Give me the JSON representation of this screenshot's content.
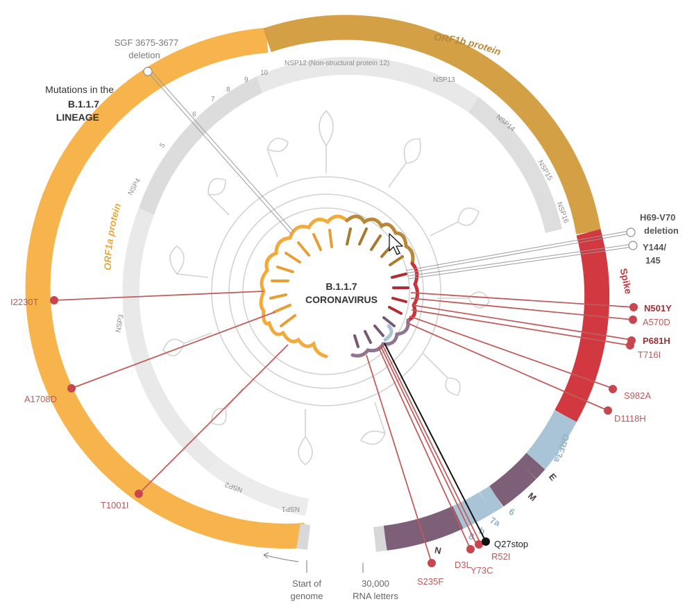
{
  "title": {
    "line1": "Mutations in the",
    "line2": "B.1.1.7",
    "line3": "LINEAGE"
  },
  "virus": {
    "line1": "B.1.1.7",
    "line2": "CORONAVIRUS"
  },
  "proteins": {
    "orf1a": "ORF1a protein",
    "orf1b": "ORF1b protein",
    "spike": "Spike",
    "orf3a": "ORF3a",
    "e": "E",
    "m": "M",
    "six": "6",
    "seven_a": "7a",
    "seven_b": "b",
    "eight": "8",
    "n": "N"
  },
  "nsp": [
    "NSP1",
    "NSP2",
    "NSP3",
    "NSP4",
    "5",
    "6",
    "7",
    "8",
    "9",
    "10",
    "NSP12 (Non-structural protein 12)",
    "NSP13",
    "NSP14",
    "NSP15",
    "NSP16"
  ],
  "deletions": {
    "sgf_line1": "SGF 3675-3677",
    "sgf_line2": "deletion",
    "h69_line1": "H69-V70",
    "h69_line2": "deletion",
    "y144_line1": "Y144/",
    "y144_line2": "145"
  },
  "mutations": {
    "i2230t": "I2230T",
    "a1708d": "A1708D",
    "t1001i": "T1001I",
    "n501y": "N501Y",
    "a570d": "A570D",
    "p681h": "P681H",
    "t716i": "T716I",
    "s982a": "S982A",
    "d1118h": "D1118H",
    "s235f": "S235F",
    "d3l": "D3L",
    "y73c": "Y73C",
    "r52i": "R52I",
    "q27stop": "Q27stop"
  },
  "axis": {
    "start_line1": "Start of",
    "start_line2": "genome",
    "end_line1": "30,000",
    "end_line2": "RNA letters"
  },
  "colors": {
    "orf1a": "#f7b44c",
    "orf1b": "#d3a046",
    "spike": "#d2383f",
    "orf3a": "#a8c4d6",
    "purple": "#7d5f78",
    "nsp_band": "#e6e6e6",
    "mutation": "#c15c5c",
    "deletion": "#9a9a9a"
  }
}
